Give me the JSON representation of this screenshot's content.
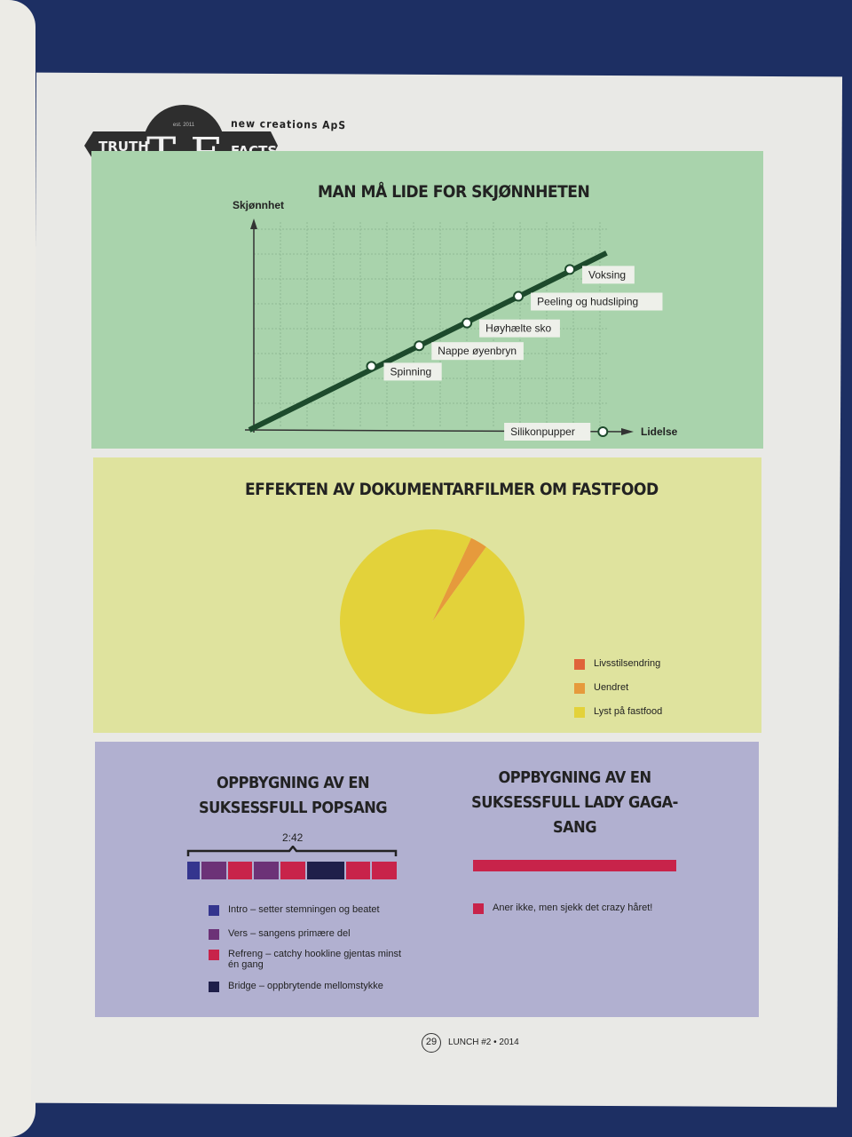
{
  "header": {
    "brand_left": "TRUTH",
    "brand_letter": "T F",
    "brand_right": "FACTS",
    "est": "est. 2011",
    "publisher": "new creations ApS"
  },
  "chart_data": [
    {
      "type": "line",
      "title": "MAN MÅ LIDE FOR SKJØNNHETEN",
      "xlabel": "Lidelse",
      "ylabel": "Skjønnhet",
      "grid": true,
      "points": [
        {
          "label": "Spinning",
          "x": 32,
          "y": 30
        },
        {
          "label": "Nappe øyenbryn",
          "x": 45,
          "y": 40
        },
        {
          "label": "Høyhælte sko",
          "x": 58,
          "y": 51
        },
        {
          "label": "Peeling og hudsliping",
          "x": 72,
          "y": 64
        },
        {
          "label": "Voksing",
          "x": 86,
          "y": 77
        },
        {
          "label": "Silikonpupper",
          "x": 95,
          "y": 0
        }
      ],
      "line_color": "#1d4a2c"
    },
    {
      "type": "pie",
      "title": "EFFEKTEN AV DOKUMENTARFILMER OM FASTFOOD",
      "legend": "right",
      "slices": [
        {
          "name": "Livsstilsendring",
          "value": 0,
          "color": "#e0643a"
        },
        {
          "name": "Uendret",
          "value": 3,
          "color": "#e69a3c"
        },
        {
          "name": "Lyst på fastfood",
          "value": 97,
          "color": "#e3d23a"
        }
      ]
    },
    {
      "type": "bar",
      "title": "OPPBYGNING AV EN SUKSESSFULL POPSANG",
      "duration_label": "2:42",
      "segments": [
        {
          "part": "Intro",
          "length": 1
        },
        {
          "part": "Vers",
          "length": 2
        },
        {
          "part": "Refreng",
          "length": 2
        },
        {
          "part": "Vers",
          "length": 2
        },
        {
          "part": "Refreng",
          "length": 2
        },
        {
          "part": "Bridge",
          "length": 3
        },
        {
          "part": "Refreng",
          "length": 2
        },
        {
          "part": "Refreng",
          "length": 2
        }
      ],
      "legend": [
        {
          "part": "Intro",
          "text": "Intro – setter stemningen og beatet",
          "color": "#34358e"
        },
        {
          "part": "Vers",
          "text": "Vers – sangens primære del",
          "color": "#6c3277"
        },
        {
          "part": "Refreng",
          "text": "Refreng – catchy hookline gjentas minst én gang",
          "color": "#c8234a"
        },
        {
          "part": "Bridge",
          "text": "Bridge – oppbrytende mellomstykke",
          "color": "#1f1f4a"
        }
      ]
    },
    {
      "type": "bar",
      "title": "OPPBYGNING AV EN SUKSESSFULL LADY GAGA-SANG",
      "segments": [
        {
          "part": "Aner ikke",
          "length": 1
        }
      ],
      "legend": [
        {
          "part": "Aner ikke",
          "text": "Aner ikke, men sjekk det crazy håret!",
          "color": "#c8234a"
        }
      ]
    }
  ],
  "footer": {
    "page_number": "29",
    "issue": "LUNCH #2 • 2014"
  }
}
